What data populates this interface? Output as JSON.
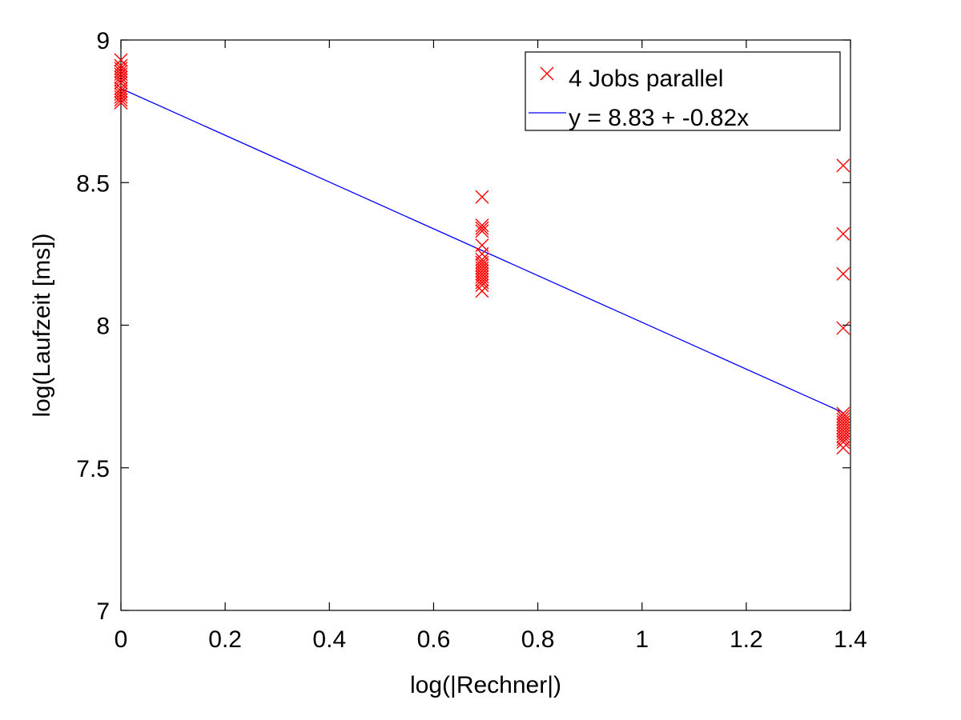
{
  "chart_data": {
    "type": "scatter",
    "title": "",
    "xlabel": "log(|Rechner|)",
    "ylabel": "log(Laufzeit [ms])",
    "xlim": [
      0,
      1.4
    ],
    "ylim": [
      7,
      9
    ],
    "xticks": [
      "0",
      "0.2",
      "0.4",
      "0.6",
      "0.8",
      "1",
      "1.2",
      "1.4"
    ],
    "yticks": [
      "7",
      "7.5",
      "8",
      "8.5",
      "9"
    ],
    "grid": false,
    "legend_position": "top-right",
    "series": [
      {
        "name": "4 Jobs parallel",
        "kind": "scatter",
        "marker": "x",
        "color": "#ff0000",
        "points": [
          [
            0,
            8.93
          ],
          [
            0,
            8.91
          ],
          [
            0,
            8.9
          ],
          [
            0,
            8.89
          ],
          [
            0,
            8.88
          ],
          [
            0,
            8.87
          ],
          [
            0,
            8.86
          ],
          [
            0,
            8.85
          ],
          [
            0,
            8.83
          ],
          [
            0,
            8.82
          ],
          [
            0,
            8.81
          ],
          [
            0,
            8.8
          ],
          [
            0,
            8.79
          ],
          [
            0,
            8.78
          ],
          [
            0.693,
            8.45
          ],
          [
            0.693,
            8.35
          ],
          [
            0.693,
            8.34
          ],
          [
            0.693,
            8.33
          ],
          [
            0.693,
            8.28
          ],
          [
            0.693,
            8.25
          ],
          [
            0.693,
            8.23
          ],
          [
            0.693,
            8.22
          ],
          [
            0.693,
            8.21
          ],
          [
            0.693,
            8.2
          ],
          [
            0.693,
            8.19
          ],
          [
            0.693,
            8.18
          ],
          [
            0.693,
            8.17
          ],
          [
            0.693,
            8.16
          ],
          [
            0.693,
            8.15
          ],
          [
            0.693,
            8.14
          ],
          [
            0.693,
            8.12
          ],
          [
            1.386,
            8.56
          ],
          [
            1.386,
            8.32
          ],
          [
            1.386,
            8.18
          ],
          [
            1.386,
            7.99
          ],
          [
            1.386,
            7.69
          ],
          [
            1.386,
            7.68
          ],
          [
            1.386,
            7.67
          ],
          [
            1.386,
            7.66
          ],
          [
            1.386,
            7.65
          ],
          [
            1.386,
            7.64
          ],
          [
            1.386,
            7.63
          ],
          [
            1.386,
            7.62
          ],
          [
            1.386,
            7.61
          ],
          [
            1.386,
            7.6
          ],
          [
            1.386,
            7.59
          ],
          [
            1.386,
            7.57
          ]
        ]
      },
      {
        "name": "y = 8.83 + -0.82x",
        "kind": "line",
        "color": "#0000ff",
        "intercept": 8.83,
        "slope": -0.82,
        "x_range": [
          0,
          1.386
        ]
      }
    ]
  }
}
